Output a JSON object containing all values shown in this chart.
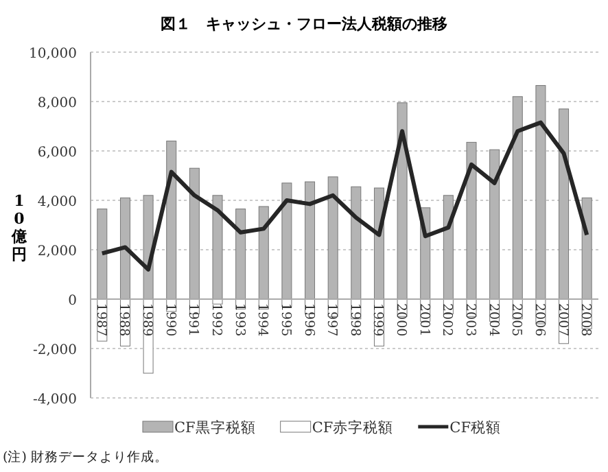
{
  "chart_data": {
    "type": "bar",
    "title": "図１　キャッシュ・フロー法人税額の推移",
    "ylabel": "10億円",
    "categories": [
      "1987",
      "1988",
      "1989",
      "1990",
      "1991",
      "1992",
      "1993",
      "1994",
      "1995",
      "1996",
      "1997",
      "1998",
      "1999",
      "2000",
      "2001",
      "2002",
      "2003",
      "2004",
      "2005",
      "2006",
      "2007",
      "2008"
    ],
    "stacked": true,
    "series": [
      {
        "name": "CF黒字税額",
        "color": "#b4b4b4",
        "values": [
          3650,
          4100,
          4200,
          6400,
          5300,
          4200,
          3650,
          3750,
          4700,
          4750,
          4950,
          4550,
          4500,
          7950,
          3700,
          4200,
          6350,
          6050,
          8200,
          8650,
          7700,
          4100
        ]
      },
      {
        "name": "CF赤字税額",
        "color": "#ffffff",
        "values": [
          -1700,
          -1900,
          -3000,
          -500,
          -600,
          -200,
          -400,
          -400,
          -300,
          -600,
          -700,
          -800,
          -1900,
          -700,
          -900,
          -600,
          -700,
          -900,
          -800,
          -1000,
          -1800,
          -1200
        ]
      },
      {
        "name": "CF税額",
        "type": "line",
        "color": "#262626",
        "values": [
          1850,
          2100,
          1200,
          5150,
          4200,
          3600,
          2700,
          2850,
          4000,
          3850,
          4200,
          3300,
          2600,
          6800,
          2550,
          2900,
          5450,
          4700,
          6800,
          7150,
          5900,
          2600
        ]
      }
    ],
    "ylim": [
      -4000,
      10000
    ],
    "yticks": [
      {
        "value": -4000,
        "label": "-4,000"
      },
      {
        "value": -2000,
        "label": "-2,000"
      },
      0,
      {
        "value": 2000,
        "label": "2,000"
      },
      {
        "value": 4000,
        "label": "4,000"
      },
      {
        "value": 6000,
        "label": "6,000"
      },
      {
        "value": 8000,
        "label": "8,000"
      },
      {
        "value": 10000,
        "label": "10,000"
      }
    ],
    "grid": "y",
    "legend": "bottom",
    "marker": "none",
    "line_style": "solid",
    "annotations": [
      "(注) 財務データより作成。"
    ]
  }
}
